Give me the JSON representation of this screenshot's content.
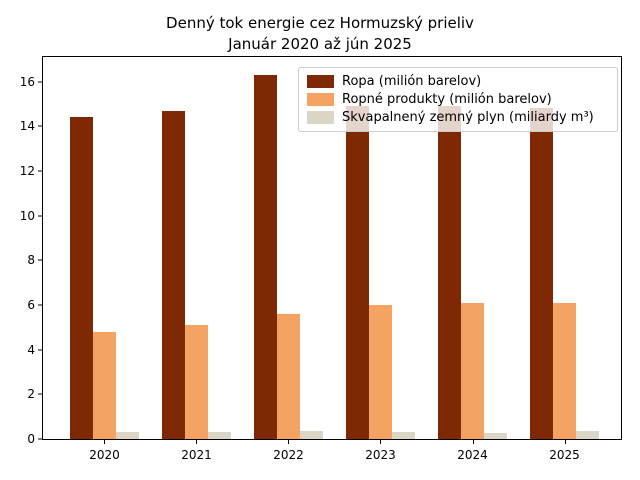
{
  "title": {
    "line1": "Denný tok energie cez Hormuzský prieliv",
    "line2": "Január 2020 až jún 2025"
  },
  "chart_data": {
    "type": "bar",
    "title": "Denný tok energie cez Hormuzský prieliv",
    "subtitle": "Január 2020 až jún 2025",
    "categories": [
      "2020",
      "2021",
      "2022",
      "2023",
      "2024",
      "2025"
    ],
    "series": [
      {
        "name": "Ropa (milión barelov)",
        "color": "#7f2904",
        "values": [
          14.4,
          14.7,
          16.3,
          14.9,
          14.9,
          14.8
        ]
      },
      {
        "name": "Ropné produkty (milión barelov)",
        "color": "#f4a363",
        "values": [
          4.8,
          5.1,
          5.6,
          6.0,
          6.1,
          6.1
        ]
      },
      {
        "name": "Skvapalnený zemný plyn (miliardy m³)",
        "color": "#dcd6c7",
        "values": [
          0.3,
          0.32,
          0.35,
          0.3,
          0.29,
          0.34
        ]
      }
    ],
    "xlabel": "",
    "ylabel": "",
    "ylim": [
      0,
      17.1
    ],
    "yticks": [
      0,
      2,
      4,
      6,
      8,
      10,
      12,
      14,
      16
    ],
    "grid": false,
    "legend_position": "upper right"
  }
}
